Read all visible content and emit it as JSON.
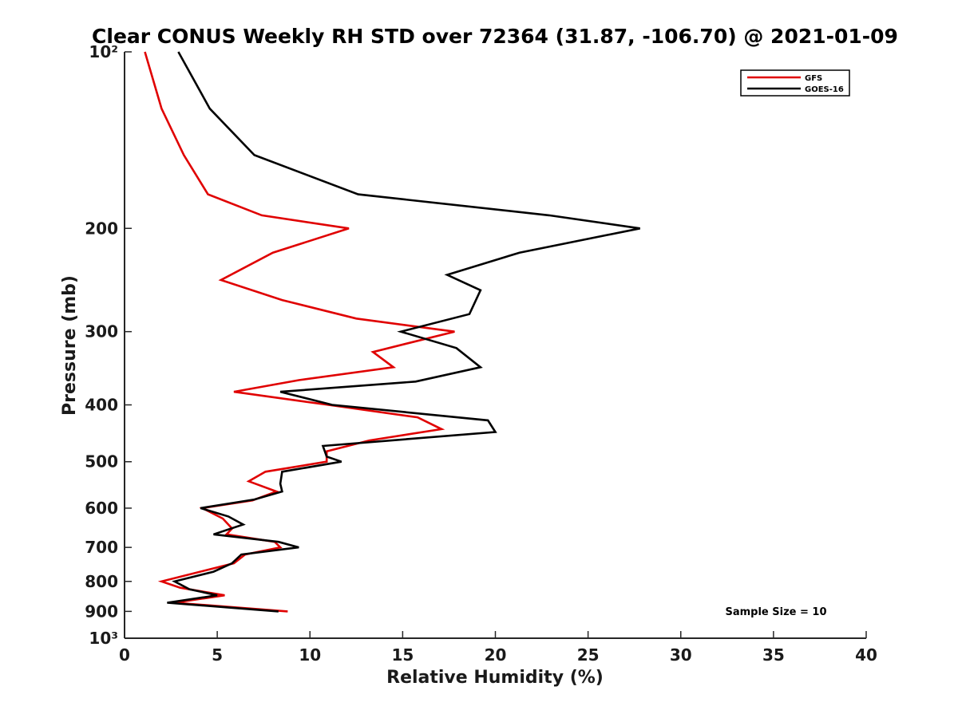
{
  "chart_data": {
    "type": "line",
    "title": "Clear CONUS Weekly RH STD over 72364 (31.87, -106.70) @ 2021-01-09",
    "xlabel": "Relative Humidity (%)",
    "ylabel": "Pressure (mb)",
    "xlim": [
      0,
      40
    ],
    "ylim": [
      100,
      1000
    ],
    "y_scale": "log",
    "y_reversed": true,
    "grid": false,
    "legend_position": "top-right",
    "x_ticks": [
      0,
      5,
      10,
      15,
      20,
      25,
      30,
      35,
      40
    ],
    "x_tick_labels": [
      "0",
      "5",
      "10",
      "15",
      "20",
      "25",
      "30",
      "35",
      "40"
    ],
    "y_ticks": [
      100,
      200,
      300,
      400,
      500,
      600,
      700,
      800,
      900,
      1000
    ],
    "y_tick_labels": [
      "10²",
      "200",
      "300",
      "400",
      "500",
      "600",
      "700",
      "800",
      "900",
      "10³"
    ],
    "annotation": "Sample Size = 10",
    "series": [
      {
        "name": "GFS",
        "color": "#e00000",
        "points": [
          [
            1.1,
            100
          ],
          [
            2.0,
            125
          ],
          [
            3.2,
            150
          ],
          [
            4.5,
            175
          ],
          [
            7.4,
            190
          ],
          [
            12.1,
            200
          ],
          [
            8.0,
            220
          ],
          [
            5.2,
            245
          ],
          [
            8.5,
            265
          ],
          [
            12.5,
            285
          ],
          [
            17.8,
            300
          ],
          [
            13.4,
            325
          ],
          [
            14.5,
            345
          ],
          [
            9.4,
            363
          ],
          [
            5.9,
            380
          ],
          [
            11.0,
            400
          ],
          [
            15.8,
            420
          ],
          [
            17.1,
            440
          ],
          [
            13.2,
            460
          ],
          [
            10.9,
            480
          ],
          [
            10.9,
            500
          ],
          [
            7.6,
            520
          ],
          [
            6.7,
            540
          ],
          [
            8.2,
            562
          ],
          [
            6.9,
            582
          ],
          [
            4.2,
            600
          ],
          [
            5.3,
            625
          ],
          [
            5.8,
            650
          ],
          [
            5.5,
            665
          ],
          [
            8.1,
            685
          ],
          [
            8.4,
            700
          ],
          [
            6.5,
            720
          ],
          [
            5.9,
            745
          ],
          [
            2.0,
            800
          ],
          [
            3.0,
            820
          ],
          [
            5.4,
            845
          ],
          [
            2.7,
            870
          ],
          [
            8.8,
            900
          ]
        ]
      },
      {
        "name": "GOES-16",
        "color": "#000000",
        "points": [
          [
            2.9,
            100
          ],
          [
            4.6,
            125
          ],
          [
            7.0,
            150
          ],
          [
            12.6,
            175
          ],
          [
            22.9,
            190
          ],
          [
            27.8,
            200
          ],
          [
            21.3,
            220
          ],
          [
            17.4,
            240
          ],
          [
            19.2,
            255
          ],
          [
            18.6,
            280
          ],
          [
            14.9,
            300
          ],
          [
            17.9,
            320
          ],
          [
            19.2,
            345
          ],
          [
            15.7,
            365
          ],
          [
            8.4,
            380
          ],
          [
            11.2,
            400
          ],
          [
            19.6,
            425
          ],
          [
            20.0,
            445
          ],
          [
            10.7,
            470
          ],
          [
            10.9,
            490
          ],
          [
            11.7,
            500
          ],
          [
            8.5,
            520
          ],
          [
            8.4,
            545
          ],
          [
            8.5,
            562
          ],
          [
            7.0,
            580
          ],
          [
            4.1,
            600
          ],
          [
            5.6,
            620
          ],
          [
            6.4,
            640
          ],
          [
            4.8,
            665
          ],
          [
            8.3,
            685
          ],
          [
            9.4,
            700
          ],
          [
            6.3,
            720
          ],
          [
            5.8,
            745
          ],
          [
            4.8,
            770
          ],
          [
            2.7,
            800
          ],
          [
            3.5,
            825
          ],
          [
            5.0,
            845
          ],
          [
            2.3,
            870
          ],
          [
            8.3,
            900
          ]
        ]
      }
    ]
  }
}
